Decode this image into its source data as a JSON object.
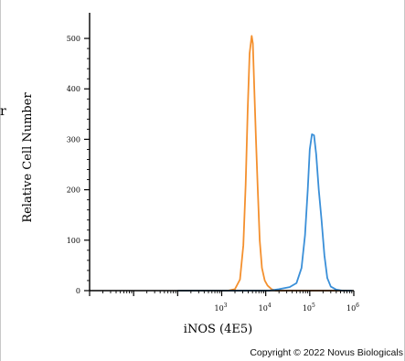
{
  "chart_data": {
    "type": "line",
    "title": "",
    "xlabel": "iNOS (4E5)",
    "ylabel": "Relative Cell Number",
    "xscale": "log",
    "xlim": [
      1,
      1000000
    ],
    "ylim": [
      0,
      520
    ],
    "x_ticks": [
      {
        "value": 1000,
        "base": "10",
        "exp": "3"
      },
      {
        "value": 10000,
        "base": "10",
        "exp": "4"
      },
      {
        "value": 100000,
        "base": "10",
        "exp": "5"
      },
      {
        "value": 1000000,
        "base": "10",
        "exp": "6"
      }
    ],
    "y_ticks": [
      0,
      100,
      200,
      300,
      400,
      500
    ],
    "grid": false,
    "legend": "none",
    "series": [
      {
        "color": "#f4902e",
        "points": [
          [
            100,
            0
          ],
          [
            1400,
            0
          ],
          [
            2000,
            3
          ],
          [
            2600,
            22
          ],
          [
            3100,
            90
          ],
          [
            3500,
            210
          ],
          [
            3900,
            360
          ],
          [
            4300,
            470
          ],
          [
            4800,
            505
          ],
          [
            5100,
            490
          ],
          [
            5500,
            400
          ],
          [
            6000,
            300
          ],
          [
            6600,
            200
          ],
          [
            7300,
            100
          ],
          [
            8200,
            45
          ],
          [
            9500,
            20
          ],
          [
            11000,
            10
          ],
          [
            13500,
            3
          ],
          [
            17000,
            0
          ],
          [
            700000,
            0
          ]
        ]
      },
      {
        "color": "#3a8fd8",
        "points": [
          [
            100,
            0
          ],
          [
            12000,
            0
          ],
          [
            20000,
            3
          ],
          [
            35000,
            7
          ],
          [
            50000,
            15
          ],
          [
            65000,
            45
          ],
          [
            78000,
            110
          ],
          [
            90000,
            200
          ],
          [
            100000,
            280
          ],
          [
            112000,
            310
          ],
          [
            125000,
            308
          ],
          [
            140000,
            270
          ],
          [
            160000,
            200
          ],
          [
            185000,
            140
          ],
          [
            215000,
            70
          ],
          [
            250000,
            25
          ],
          [
            300000,
            8
          ],
          [
            400000,
            2
          ],
          [
            550000,
            0
          ],
          [
            900000,
            0
          ]
        ]
      }
    ]
  },
  "footer": {
    "copyright": "Copyright © 2022 Novus Biologicals"
  },
  "page": {
    "side_glyph": "r"
  }
}
